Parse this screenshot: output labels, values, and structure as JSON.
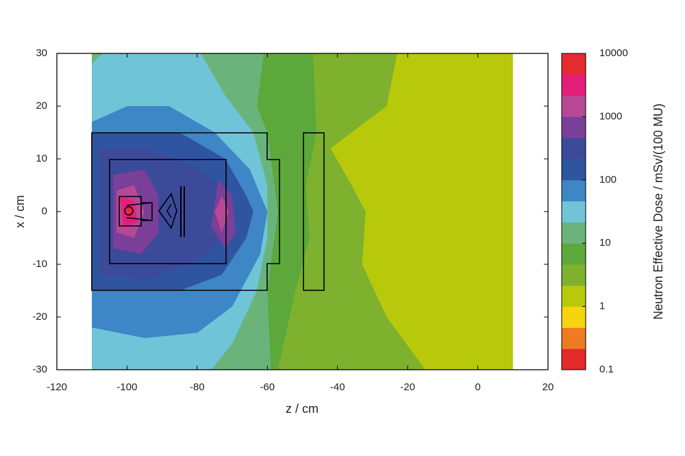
{
  "chart_data": {
    "type": "heatmap",
    "xlabel": "z / cm",
    "ylabel": "x / cm",
    "xlim": [
      -120,
      20
    ],
    "ylim": [
      -30,
      30
    ],
    "xticks": [
      -120,
      -100,
      -80,
      -60,
      -40,
      -20,
      0,
      20
    ],
    "yticks": [
      -30,
      -20,
      -10,
      0,
      10,
      20,
      30
    ],
    "colorbar": {
      "label": "Neutron Effective Dose / mSv/(100 MU)",
      "lim": [
        0.1,
        10000
      ],
      "log": true,
      "ticks": [
        0.1,
        1,
        10,
        100,
        1000,
        10000
      ],
      "colors": [
        "#e42a2a",
        "#ee7a22",
        "#f6d40e",
        "#b8c80a",
        "#7db12e",
        "#5ca83a",
        "#6ab47c",
        "#70c4d8",
        "#3e86c6",
        "#2f55a0",
        "#3c4a9a",
        "#7a3f98",
        "#b64896",
        "#e41f7a",
        "#e42b30"
      ]
    },
    "regions": [
      {
        "value": 1.5,
        "points": [
          [
            -110,
            30
          ],
          [
            10,
            30
          ],
          [
            10,
            -30
          ],
          [
            -110,
            -30
          ]
        ]
      },
      {
        "value": 3,
        "points": [
          [
            -110,
            30
          ],
          [
            -23,
            30
          ],
          [
            -26,
            20
          ],
          [
            -42,
            12
          ],
          [
            -36,
            5
          ],
          [
            -32,
            0
          ],
          [
            -33,
            -10
          ],
          [
            -26,
            -20
          ],
          [
            -15,
            -30
          ],
          [
            -110,
            -30
          ]
        ]
      },
      {
        "value": 6,
        "points": [
          [
            -110,
            30
          ],
          [
            -47,
            30
          ],
          [
            -46,
            15
          ],
          [
            -49,
            5
          ],
          [
            -48,
            -5
          ],
          [
            -52,
            -15
          ],
          [
            -57,
            -30
          ],
          [
            -110,
            -30
          ]
        ]
      },
      {
        "value": 15,
        "points": [
          [
            -110,
            30
          ],
          [
            -61,
            30
          ],
          [
            -63,
            20
          ],
          [
            -60,
            15
          ],
          [
            -57,
            0
          ],
          [
            -60,
            -15
          ],
          [
            -59,
            -30
          ],
          [
            -110,
            -30
          ]
        ]
      },
      {
        "value": 30,
        "points": [
          [
            -107,
            30
          ],
          [
            -79,
            30
          ],
          [
            -72,
            22
          ],
          [
            -64,
            15
          ],
          [
            -60,
            5
          ],
          [
            -60,
            -5
          ],
          [
            -63,
            -15
          ],
          [
            -70,
            -25
          ],
          [
            -76,
            -30
          ],
          [
            -110,
            -30
          ],
          [
            -110,
            28
          ]
        ]
      },
      {
        "value": 70,
        "points": [
          [
            -110,
            17
          ],
          [
            -100,
            20
          ],
          [
            -88,
            20
          ],
          [
            -75,
            15
          ],
          [
            -65,
            8
          ],
          [
            -60,
            0
          ],
          [
            -62,
            -8
          ],
          [
            -70,
            -18
          ],
          [
            -80,
            -23
          ],
          [
            -95,
            -24
          ],
          [
            -110,
            -22
          ]
        ]
      },
      {
        "value": 150,
        "points": [
          [
            -110,
            15
          ],
          [
            -85,
            15
          ],
          [
            -72,
            10
          ],
          [
            -66,
            3
          ],
          [
            -64,
            0
          ],
          [
            -66,
            -5
          ],
          [
            -73,
            -12
          ],
          [
            -85,
            -15
          ],
          [
            -110,
            -15
          ]
        ]
      },
      {
        "value": 300,
        "points": [
          [
            -108,
            12
          ],
          [
            -95,
            12
          ],
          [
            -82,
            9
          ],
          [
            -73,
            5
          ],
          [
            -70,
            0
          ],
          [
            -73,
            -6
          ],
          [
            -82,
            -10
          ],
          [
            -95,
            -13
          ],
          [
            -108,
            -12
          ]
        ]
      },
      {
        "value": 700,
        "points": [
          [
            -104,
            7
          ],
          [
            -95,
            8
          ],
          [
            -91,
            3
          ],
          [
            -91,
            -4
          ],
          [
            -96,
            -8
          ],
          [
            -104,
            -7
          ]
        ]
      },
      {
        "value": 700,
        "points": [
          [
            -74,
            6
          ],
          [
            -70,
            3
          ],
          [
            -69,
            -4
          ],
          [
            -72,
            -7
          ],
          [
            -76,
            -3
          ]
        ]
      },
      {
        "value": 1500,
        "points": [
          [
            -103,
            4
          ],
          [
            -98,
            5
          ],
          [
            -95,
            0
          ],
          [
            -98,
            -5
          ],
          [
            -103,
            -4
          ]
        ]
      },
      {
        "value": 1500,
        "points": [
          [
            -73,
            3
          ],
          [
            -71,
            0
          ],
          [
            -73,
            -4
          ],
          [
            -75,
            0
          ]
        ]
      },
      {
        "value": 3000,
        "points": [
          [
            -102,
            3
          ],
          [
            -98,
            2
          ],
          [
            -97,
            -2
          ],
          [
            -101,
            -3
          ]
        ]
      },
      {
        "value": 7000,
        "points": [
          [
            -100,
            1
          ],
          [
            -98,
            0
          ],
          [
            -100,
            -1
          ]
        ]
      }
    ]
  }
}
